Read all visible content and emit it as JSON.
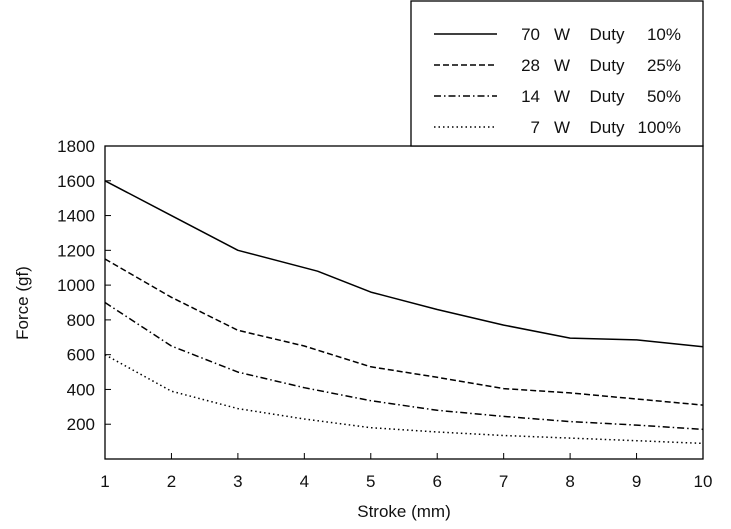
{
  "chart_data": {
    "type": "line",
    "title": "",
    "xlabel": "Stroke (mm)",
    "ylabel": "Force (gf)",
    "xlim": [
      1,
      10
    ],
    "ylim": [
      0,
      1800
    ],
    "x_ticks": [
      "1",
      "2",
      "3",
      "4",
      "5",
      "6",
      "7",
      "8",
      "9",
      "10"
    ],
    "y_ticks": [
      "200",
      "400",
      "600",
      "800",
      "1000",
      "1200",
      "1400",
      "1600",
      "1800"
    ],
    "grid": false,
    "legend_position": "top-right",
    "series": [
      {
        "name": "70 W Duty 10%",
        "legend": {
          "power": "70",
          "unit": "W",
          "duty_label": "Duty",
          "duty": "10%"
        },
        "style": "solid",
        "x": [
          1,
          2,
          3,
          4,
          4.2,
          5,
          5.3,
          6,
          7,
          8,
          9,
          10
        ],
        "y": [
          1600,
          1400,
          1200,
          1100,
          1080,
          960,
          930,
          860,
          770,
          695,
          685,
          645
        ]
      },
      {
        "name": "28 W Duty 25%",
        "legend": {
          "power": "28",
          "unit": "W",
          "duty_label": "Duty",
          "duty": "25%"
        },
        "style": "dashed",
        "x": [
          1,
          2,
          3,
          4,
          5,
          6,
          7,
          8,
          9,
          10
        ],
        "y": [
          1150,
          930,
          740,
          650,
          530,
          470,
          405,
          380,
          345,
          310
        ]
      },
      {
        "name": "14 W Duty 50%",
        "legend": {
          "power": "14",
          "unit": "W",
          "duty_label": "Duty",
          "duty": "50%"
        },
        "style": "dashdot",
        "x": [
          1,
          2,
          3,
          4,
          5,
          6,
          7,
          8,
          9,
          10
        ],
        "y": [
          900,
          650,
          500,
          410,
          335,
          280,
          245,
          215,
          195,
          170
        ]
      },
      {
        "name": "7 W Duty 100%",
        "legend": {
          "power": "7",
          "unit": "W",
          "duty_label": "Duty",
          "duty": "100%"
        },
        "style": "dotted",
        "x": [
          1,
          2,
          3,
          4,
          5,
          6,
          7,
          8,
          9,
          10
        ],
        "y": [
          600,
          390,
          290,
          230,
          180,
          155,
          135,
          120,
          105,
          90
        ]
      }
    ]
  }
}
